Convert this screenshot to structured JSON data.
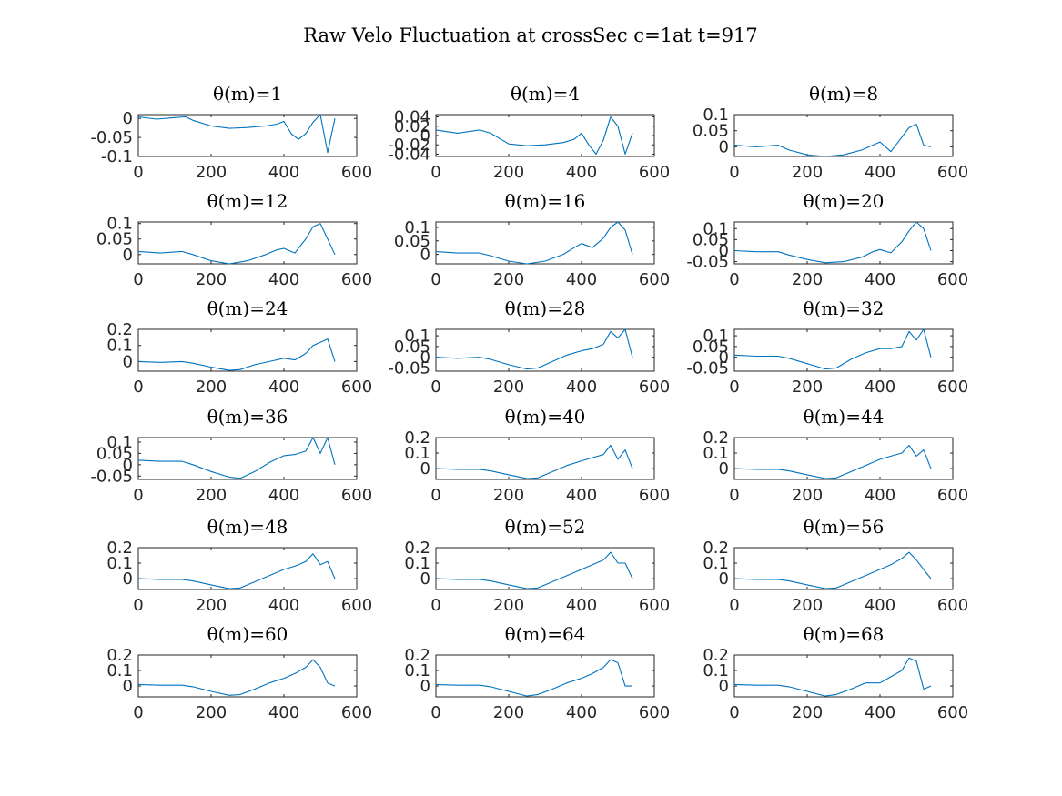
{
  "figure": {
    "title": "Raw Velo Fluctuation at crossSec c=1at t=917",
    "line_color": "#0072BD"
  },
  "chart_data": [
    {
      "type": "line",
      "title": "θ(m)=1",
      "xlim": [
        0,
        600
      ],
      "ylim": [
        -0.1,
        0.01
      ],
      "xticks": [
        0,
        200,
        400,
        600
      ],
      "yticks": [
        -0.1,
        -0.05,
        0
      ],
      "ytick_labels": [
        "-0.1",
        "-0.05",
        "0"
      ],
      "series": [
        {
          "x": [
            0,
            50,
            100,
            130,
            150,
            200,
            250,
            300,
            350,
            380,
            400,
            420,
            440,
            460,
            480,
            500,
            520,
            540
          ],
          "y": [
            0.004,
            -0.002,
            0.002,
            0.004,
            -0.005,
            -0.02,
            -0.026,
            -0.024,
            -0.02,
            -0.015,
            -0.008,
            -0.04,
            -0.055,
            -0.04,
            -0.01,
            0.01,
            -0.09,
            0.0
          ]
        }
      ]
    },
    {
      "type": "line",
      "title": "θ(m)=4",
      "xlim": [
        0,
        600
      ],
      "ylim": [
        -0.045,
        0.045
      ],
      "xticks": [
        0,
        200,
        400,
        600
      ],
      "yticks": [
        -0.04,
        -0.02,
        0,
        0.02,
        0.04
      ],
      "ytick_labels": [
        "-0.04",
        "-0.02",
        "0",
        "0.02",
        "0.04"
      ],
      "series": [
        {
          "x": [
            0,
            60,
            120,
            150,
            200,
            250,
            300,
            350,
            380,
            400,
            420,
            440,
            460,
            480,
            500,
            520,
            540
          ],
          "y": [
            0.012,
            0.005,
            0.012,
            0.005,
            -0.018,
            -0.022,
            -0.02,
            -0.015,
            -0.008,
            0.005,
            -0.02,
            -0.04,
            -0.01,
            0.04,
            0.02,
            -0.04,
            0.005
          ]
        }
      ]
    },
    {
      "type": "line",
      "title": "θ(m)=8",
      "xlim": [
        0,
        600
      ],
      "ylim": [
        -0.03,
        0.1
      ],
      "xticks": [
        0,
        200,
        400,
        600
      ],
      "yticks": [
        0,
        0.05,
        0.1
      ],
      "ytick_labels": [
        "0",
        "0.05",
        "0.1"
      ],
      "series": [
        {
          "x": [
            0,
            60,
            120,
            150,
            200,
            250,
            300,
            350,
            380,
            400,
            430,
            460,
            480,
            500,
            520,
            540
          ],
          "y": [
            0.005,
            0.0,
            0.005,
            -0.01,
            -0.025,
            -0.03,
            -0.025,
            -0.01,
            0.005,
            0.015,
            -0.015,
            0.03,
            0.06,
            0.07,
            0.005,
            0.0
          ]
        }
      ]
    },
    {
      "type": "line",
      "title": "θ(m)=12",
      "xlim": [
        0,
        600
      ],
      "ylim": [
        -0.03,
        0.105
      ],
      "xticks": [
        0,
        200,
        400,
        600
      ],
      "yticks": [
        0,
        0.05,
        0.1
      ],
      "ytick_labels": [
        "0",
        "0.05",
        "0.1"
      ],
      "series": [
        {
          "x": [
            0,
            60,
            120,
            150,
            200,
            250,
            300,
            350,
            380,
            400,
            430,
            460,
            480,
            500,
            520,
            540
          ],
          "y": [
            0.01,
            0.005,
            0.01,
            0.0,
            -0.02,
            -0.03,
            -0.02,
            0.0,
            0.015,
            0.02,
            0.005,
            0.05,
            0.09,
            0.1,
            0.05,
            0.0
          ]
        }
      ]
    },
    {
      "type": "line",
      "title": "θ(m)=16",
      "xlim": [
        0,
        600
      ],
      "ylim": [
        -0.035,
        0.12
      ],
      "xticks": [
        0,
        200,
        400,
        600
      ],
      "yticks": [
        0,
        0.05,
        0.1
      ],
      "ytick_labels": [
        "0",
        "0.05",
        "0.1"
      ],
      "series": [
        {
          "x": [
            0,
            60,
            120,
            150,
            200,
            250,
            300,
            350,
            380,
            400,
            430,
            460,
            480,
            500,
            520,
            540
          ],
          "y": [
            0.01,
            0.005,
            0.005,
            -0.005,
            -0.025,
            -0.035,
            -0.025,
            0.0,
            0.025,
            0.04,
            0.025,
            0.06,
            0.1,
            0.12,
            0.09,
            0.0
          ]
        }
      ]
    },
    {
      "type": "line",
      "title": "θ(m)=20",
      "xlim": [
        0,
        600
      ],
      "ylim": [
        -0.06,
        0.13
      ],
      "xticks": [
        0,
        200,
        400,
        600
      ],
      "yticks": [
        -0.05,
        0,
        0.05,
        0.1
      ],
      "ytick_labels": [
        "-0.05",
        "0",
        "0.05",
        "0.1"
      ],
      "series": [
        {
          "x": [
            0,
            60,
            120,
            150,
            200,
            250,
            300,
            350,
            380,
            400,
            430,
            460,
            480,
            500,
            520,
            540
          ],
          "y": [
            0.0,
            -0.005,
            -0.005,
            -0.02,
            -0.04,
            -0.055,
            -0.05,
            -0.03,
            -0.005,
            0.005,
            -0.01,
            0.04,
            0.09,
            0.13,
            0.1,
            0.0
          ]
        }
      ]
    },
    {
      "type": "line",
      "title": "θ(m)=24",
      "xlim": [
        0,
        600
      ],
      "ylim": [
        -0.06,
        0.2
      ],
      "xticks": [
        0,
        200,
        400,
        600
      ],
      "yticks": [
        0,
        0.1,
        0.2
      ],
      "ytick_labels": [
        "0",
        "0.1",
        "0.2"
      ],
      "series": [
        {
          "x": [
            0,
            60,
            120,
            150,
            200,
            250,
            280,
            320,
            360,
            400,
            430,
            460,
            480,
            500,
            520,
            540
          ],
          "y": [
            0.0,
            -0.005,
            0.0,
            -0.01,
            -0.035,
            -0.055,
            -0.05,
            -0.02,
            0.0,
            0.02,
            0.01,
            0.05,
            0.1,
            0.12,
            0.14,
            0.0
          ]
        }
      ]
    },
    {
      "type": "line",
      "title": "θ(m)=28",
      "xlim": [
        0,
        600
      ],
      "ylim": [
        -0.065,
        0.13
      ],
      "xticks": [
        0,
        200,
        400,
        600
      ],
      "yticks": [
        -0.05,
        0,
        0.05,
        0.1
      ],
      "ytick_labels": [
        "-0.05",
        "0",
        "0.05",
        "0.1"
      ],
      "series": [
        {
          "x": [
            0,
            60,
            120,
            150,
            200,
            250,
            280,
            320,
            360,
            400,
            430,
            460,
            480,
            500,
            520,
            540
          ],
          "y": [
            0.0,
            -0.005,
            0.0,
            -0.01,
            -0.035,
            -0.055,
            -0.05,
            -0.02,
            0.01,
            0.03,
            0.04,
            0.06,
            0.12,
            0.09,
            0.13,
            0.0
          ]
        }
      ]
    },
    {
      "type": "line",
      "title": "θ(m)=32",
      "xlim": [
        0,
        600
      ],
      "ylim": [
        -0.065,
        0.13
      ],
      "xticks": [
        0,
        200,
        400,
        600
      ],
      "yticks": [
        -0.05,
        0,
        0.05,
        0.1
      ],
      "ytick_labels": [
        "-0.05",
        "0",
        "0.05",
        "0.1"
      ],
      "series": [
        {
          "x": [
            0,
            60,
            120,
            150,
            200,
            250,
            280,
            320,
            360,
            400,
            430,
            460,
            480,
            500,
            520,
            540
          ],
          "y": [
            0.01,
            0.005,
            0.005,
            -0.005,
            -0.03,
            -0.055,
            -0.05,
            -0.01,
            0.02,
            0.04,
            0.04,
            0.05,
            0.12,
            0.08,
            0.13,
            0.0
          ]
        }
      ]
    },
    {
      "type": "line",
      "title": "θ(m)=36",
      "xlim": [
        0,
        600
      ],
      "ylim": [
        -0.065,
        0.12
      ],
      "xticks": [
        0,
        200,
        400,
        600
      ],
      "yticks": [
        -0.05,
        0,
        0.05,
        0.1
      ],
      "ytick_labels": [
        "-0.05",
        "0",
        "0.05",
        "0.1"
      ],
      "series": [
        {
          "x": [
            0,
            60,
            120,
            150,
            200,
            250,
            280,
            320,
            360,
            400,
            430,
            460,
            480,
            500,
            520,
            540
          ],
          "y": [
            0.02,
            0.015,
            0.015,
            0.0,
            -0.03,
            -0.055,
            -0.06,
            -0.03,
            0.01,
            0.04,
            0.045,
            0.06,
            0.12,
            0.05,
            0.12,
            0.0
          ]
        }
      ]
    },
    {
      "type": "line",
      "title": "θ(m)=40",
      "xlim": [
        0,
        600
      ],
      "ylim": [
        -0.07,
        0.2
      ],
      "xticks": [
        0,
        200,
        400,
        600
      ],
      "yticks": [
        0,
        0.1,
        0.2
      ],
      "ytick_labels": [
        "0",
        "0.1",
        "0.2"
      ],
      "series": [
        {
          "x": [
            0,
            60,
            120,
            150,
            200,
            250,
            280,
            320,
            360,
            400,
            430,
            460,
            480,
            500,
            520,
            540
          ],
          "y": [
            0.0,
            -0.005,
            -0.005,
            -0.015,
            -0.04,
            -0.065,
            -0.06,
            -0.02,
            0.02,
            0.05,
            0.07,
            0.09,
            0.15,
            0.06,
            0.12,
            0.0
          ]
        }
      ]
    },
    {
      "type": "line",
      "title": "θ(m)=44",
      "xlim": [
        0,
        600
      ],
      "ylim": [
        -0.07,
        0.2
      ],
      "xticks": [
        0,
        200,
        400,
        600
      ],
      "yticks": [
        0,
        0.1,
        0.2
      ],
      "ytick_labels": [
        "0",
        "0.1",
        "0.2"
      ],
      "series": [
        {
          "x": [
            0,
            60,
            120,
            150,
            200,
            250,
            280,
            320,
            360,
            400,
            430,
            460,
            480,
            500,
            520,
            540
          ],
          "y": [
            0.0,
            -0.005,
            -0.005,
            -0.015,
            -0.04,
            -0.065,
            -0.06,
            -0.02,
            0.02,
            0.06,
            0.08,
            0.1,
            0.15,
            0.08,
            0.12,
            0.0
          ]
        }
      ]
    },
    {
      "type": "line",
      "title": "θ(m)=48",
      "xlim": [
        0,
        600
      ],
      "ylim": [
        -0.07,
        0.2
      ],
      "xticks": [
        0,
        200,
        400,
        600
      ],
      "yticks": [
        0,
        0.1,
        0.2
      ],
      "ytick_labels": [
        "0",
        "0.1",
        "0.2"
      ],
      "series": [
        {
          "x": [
            0,
            60,
            120,
            150,
            200,
            250,
            280,
            320,
            360,
            400,
            430,
            460,
            480,
            500,
            520,
            540
          ],
          "y": [
            0.0,
            -0.005,
            -0.005,
            -0.015,
            -0.04,
            -0.065,
            -0.06,
            -0.02,
            0.02,
            0.06,
            0.08,
            0.11,
            0.16,
            0.09,
            0.11,
            0.0
          ]
        }
      ]
    },
    {
      "type": "line",
      "title": "θ(m)=52",
      "xlim": [
        0,
        600
      ],
      "ylim": [
        -0.07,
        0.2
      ],
      "xticks": [
        0,
        200,
        400,
        600
      ],
      "yticks": [
        0,
        0.1,
        0.2
      ],
      "ytick_labels": [
        "0",
        "0.1",
        "0.2"
      ],
      "series": [
        {
          "x": [
            0,
            60,
            120,
            150,
            200,
            250,
            280,
            320,
            360,
            400,
            430,
            460,
            480,
            500,
            520,
            540
          ],
          "y": [
            0.0,
            -0.005,
            -0.005,
            -0.015,
            -0.04,
            -0.065,
            -0.06,
            -0.02,
            0.02,
            0.06,
            0.09,
            0.12,
            0.17,
            0.1,
            0.1,
            0.0
          ]
        }
      ]
    },
    {
      "type": "line",
      "title": "θ(m)=56",
      "xlim": [
        0,
        600
      ],
      "ylim": [
        -0.07,
        0.2
      ],
      "xticks": [
        0,
        200,
        400,
        600
      ],
      "yticks": [
        0,
        0.1,
        0.2
      ],
      "ytick_labels": [
        "0",
        "0.1",
        "0.2"
      ],
      "series": [
        {
          "x": [
            0,
            60,
            120,
            150,
            200,
            250,
            280,
            320,
            360,
            400,
            430,
            460,
            480,
            500,
            520,
            540
          ],
          "y": [
            0.0,
            -0.005,
            -0.005,
            -0.015,
            -0.04,
            -0.065,
            -0.06,
            -0.02,
            0.02,
            0.06,
            0.09,
            0.13,
            0.17,
            0.12,
            0.06,
            0.0
          ]
        }
      ]
    },
    {
      "type": "line",
      "title": "θ(m)=60",
      "xlim": [
        0,
        600
      ],
      "ylim": [
        -0.07,
        0.2
      ],
      "xticks": [
        0,
        200,
        400,
        600
      ],
      "yticks": [
        0,
        0.1,
        0.2
      ],
      "ytick_labels": [
        "0",
        "0.1",
        "0.2"
      ],
      "series": [
        {
          "x": [
            0,
            60,
            120,
            150,
            200,
            250,
            280,
            320,
            360,
            400,
            430,
            460,
            480,
            500,
            520,
            540
          ],
          "y": [
            0.01,
            0.005,
            0.005,
            -0.005,
            -0.035,
            -0.06,
            -0.055,
            -0.02,
            0.02,
            0.05,
            0.08,
            0.12,
            0.17,
            0.12,
            0.02,
            0.0
          ]
        }
      ]
    },
    {
      "type": "line",
      "title": "θ(m)=64",
      "xlim": [
        0,
        600
      ],
      "ylim": [
        -0.07,
        0.2
      ],
      "xticks": [
        0,
        200,
        400,
        600
      ],
      "yticks": [
        0,
        0.1,
        0.2
      ],
      "ytick_labels": [
        "0",
        "0.1",
        "0.2"
      ],
      "series": [
        {
          "x": [
            0,
            60,
            120,
            150,
            200,
            250,
            280,
            320,
            360,
            400,
            430,
            460,
            480,
            500,
            520,
            540
          ],
          "y": [
            0.01,
            0.005,
            0.005,
            -0.005,
            -0.035,
            -0.065,
            -0.055,
            -0.02,
            0.02,
            0.05,
            0.08,
            0.12,
            0.17,
            0.15,
            0.0,
            0.0
          ]
        }
      ]
    },
    {
      "type": "line",
      "title": "θ(m)=68",
      "xlim": [
        0,
        600
      ],
      "ylim": [
        -0.07,
        0.2
      ],
      "xticks": [
        0,
        200,
        400,
        600
      ],
      "yticks": [
        0,
        0.1,
        0.2
      ],
      "ytick_labels": [
        "0",
        "0.1",
        "0.2"
      ],
      "series": [
        {
          "x": [
            0,
            60,
            120,
            150,
            200,
            250,
            280,
            320,
            360,
            400,
            430,
            460,
            480,
            500,
            520,
            540
          ],
          "y": [
            0.01,
            0.005,
            0.005,
            -0.005,
            -0.035,
            -0.065,
            -0.055,
            -0.02,
            0.02,
            0.02,
            0.06,
            0.1,
            0.18,
            0.16,
            -0.02,
            0.0
          ]
        }
      ]
    }
  ]
}
